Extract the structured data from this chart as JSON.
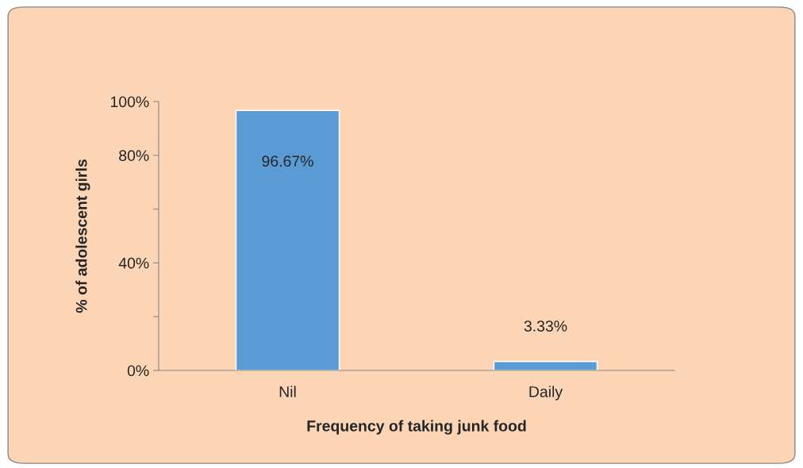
{
  "chart_data": {
    "type": "bar",
    "xlabel": "Frequency of taking junk food",
    "ylabel": "% of adolescent girls",
    "categories": [
      "Nil",
      "Daily"
    ],
    "values": [
      96.67,
      3.33
    ],
    "value_labels": [
      "96.67%",
      "3.33%"
    ],
    "color": "#5b9bd5",
    "ylim": [
      0,
      100
    ],
    "yticks": [
      {
        "value": 0,
        "label": "0%"
      },
      {
        "value": 20,
        "label": null
      },
      {
        "value": 40,
        "label": "40%"
      },
      {
        "value": 60,
        "label": null
      },
      {
        "value": 80,
        "label": "80%"
      },
      {
        "value": 100,
        "label": "100%"
      }
    ],
    "grid": false,
    "legend": false
  }
}
